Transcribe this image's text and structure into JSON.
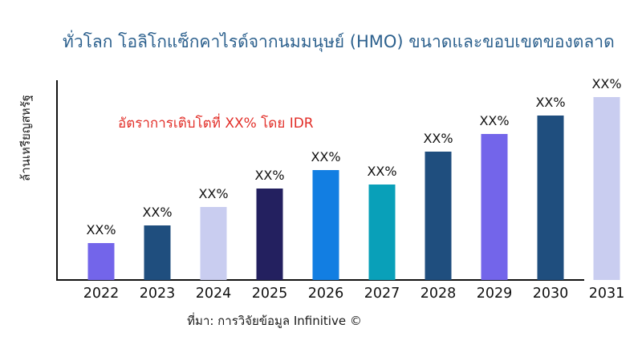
{
  "title": "ทั่วโลก โอลิโกแซ็กคาไรด์จากนมมนุษย์ (HMO) ขนาดและขอบเขตของตลาด",
  "title_color": "#2D618E",
  "y_axis_label": "ล้านเหรียญสหรัฐ",
  "annotation": {
    "text": "อัตราการเติบโตที่ XX% โดย IDR",
    "color": "#E22E28"
  },
  "source": "ที่มา: การวิจัยข้อมูล Infinitive ©",
  "chart_data": {
    "type": "bar",
    "title": "ทั่วโลก โอลิโกแซ็กคาไรด์จากนมมนุษย์ (HMO) ขนาดและขอบเขตของตลาด",
    "xlabel": "",
    "ylabel": "ล้านเหรียญสหรัฐ",
    "categories": [
      "2022",
      "2023",
      "2024",
      "2025",
      "2026",
      "2027",
      "2028",
      "2029",
      "2030",
      "2031"
    ],
    "values": [
      20,
      30,
      40,
      50,
      60,
      52,
      70,
      80,
      90,
      100
    ],
    "ylim": [
      0,
      100
    ],
    "bar_labels": [
      "XX%",
      "XX%",
      "XX%",
      "XX%",
      "XX%",
      "XX%",
      "XX%",
      "XX%",
      "XX%",
      "XX%"
    ],
    "bar_colors": [
      "#7365EA",
      "#1F4E7E",
      "#C9CDF0",
      "#23205F",
      "#127EE2",
      "#09A0B9",
      "#1F4E7E",
      "#7365EA",
      "#1F4E7E",
      "#C9CDF0"
    ],
    "grid": false,
    "legend": false
  }
}
